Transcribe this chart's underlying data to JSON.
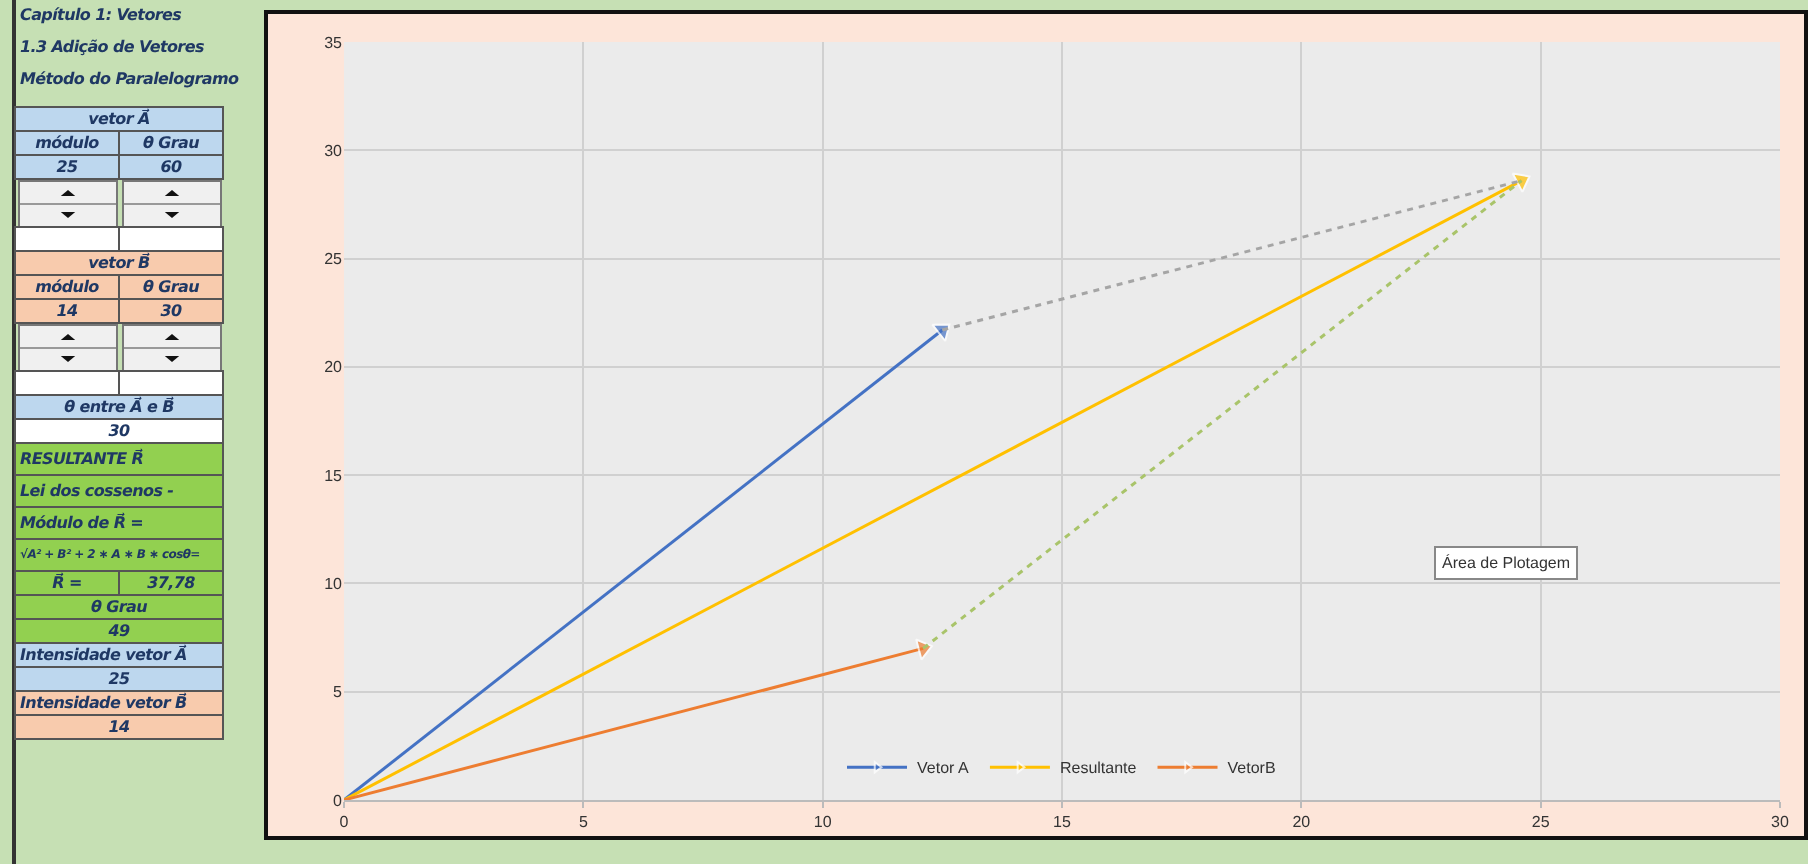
{
  "chart_data": [
    {
      "type": "other",
      "annotations": [
        "Capítulo 1: Vetores",
        "1.3 Adição de Vetores",
        "Método do Paralelogramo",
        "vetor A⃗",
        "módulo",
        "θ Grau",
        "25",
        "60",
        "vetor B⃗",
        "módulo",
        "θ Grau",
        "14",
        "30",
        "θ entre A⃗ e B⃗",
        "30",
        "RESULTANTE   R⃗",
        "Lei dos cossenos -",
        "Módulo de  R⃗ =",
        "√A² + B² + 2 ∗ A ∗ B ∗ cosθ=",
        "R⃗ =",
        "37,78",
        "θ Grau",
        "49",
        "Intensidade vetor  A⃗",
        "25",
        "Intensidade vetor  B⃗",
        "14"
      ]
    },
    {
      "type": "line",
      "xlim": [
        0,
        30
      ],
      "xticks": [
        0,
        5,
        10,
        15,
        20,
        25,
        30
      ],
      "ylim": [
        0,
        35
      ],
      "yticks": [
        0,
        5,
        10,
        15,
        20,
        25,
        30,
        35
      ],
      "grid": true,
      "legend": "bottom",
      "marker": "triangle",
      "annotations": [
        "Área de Plotagem"
      ],
      "series": [
        {
          "name": "Vetor A",
          "color": "#4472c4",
          "x": [
            0,
            12.5
          ],
          "values": [
            0,
            21.7
          ]
        },
        {
          "name": "Resultante",
          "color": "#ffc000",
          "x": [
            0,
            24.6
          ],
          "values": [
            0,
            28.6
          ]
        },
        {
          "name": "VetorB",
          "color": "#ed7d31",
          "x": [
            0,
            12.1
          ],
          "values": [
            0,
            7
          ]
        },
        {
          "color": "#a5a5a5",
          "x": [
            12.5,
            24.6
          ],
          "values": [
            21.7,
            28.6
          ],
          "line_style": "dotted",
          "marker": "none"
        },
        {
          "color": "#a9c46a",
          "x": [
            12.1,
            24.6
          ],
          "values": [
            7,
            28.6
          ],
          "line_style": "dotted",
          "marker": "none"
        }
      ]
    }
  ]
}
